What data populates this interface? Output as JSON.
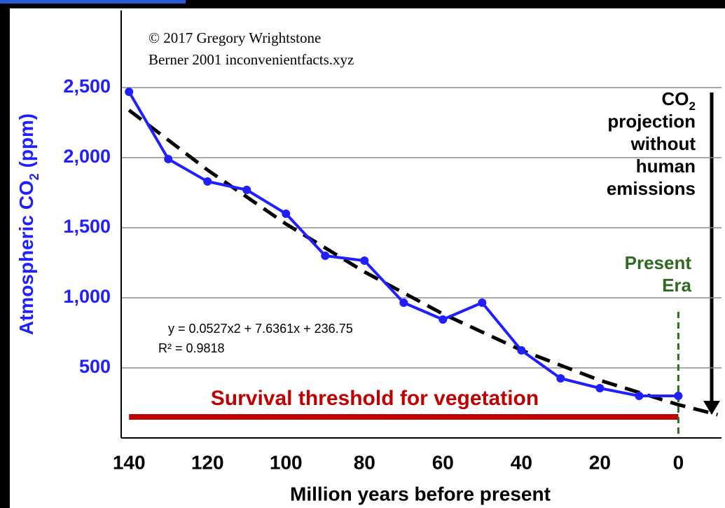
{
  "chart_data": {
    "type": "line",
    "credits": [
      "© 2017 Gregory Wrightstone",
      "Berner 2001 inconvenientfacts.xyz"
    ],
    "ylabel": [
      "Atmospheric CO",
      "2",
      " (ppm)"
    ],
    "xlabel": "Million years before present",
    "xlim": [
      142,
      -11
    ],
    "ylim": [
      0,
      3000
    ],
    "xticks": [
      140,
      120,
      100,
      80,
      60,
      40,
      20,
      0
    ],
    "yticks": [
      500,
      {
        "value": 1000,
        "label": "1,000"
      },
      {
        "value": 1500,
        "label": "1,500"
      },
      {
        "value": 2000,
        "label": "2,000"
      },
      {
        "value": 2500,
        "label": "2,500"
      }
    ],
    "grid": true,
    "series": [
      {
        "color": "#1f1fff",
        "markers": true,
        "x": [
          140,
          130,
          120,
          110,
          100,
          90,
          80,
          70,
          60,
          50,
          40,
          30,
          20,
          10,
          0
        ],
        "values": [
          2470,
          1990,
          1830,
          1770,
          1600,
          1300,
          1265,
          965,
          845,
          965,
          625,
          425,
          355,
          300,
          300
        ]
      },
      {
        "color": "#000000",
        "dashed": true,
        "x": [
          140,
          120,
          100,
          80,
          60,
          40,
          20,
          0,
          -10
        ],
        "values": [
          2339,
          1912,
          1527,
          1185,
          885,
          626,
          411,
          237,
          166
        ]
      }
    ],
    "equation": [
      "y = 0.0527x2 + 7.6361x + 236.75",
      "R² = 0.9818"
    ],
    "threshold": {
      "label": "Survival threshold for vegetation",
      "value": 150,
      "x": [
        140,
        0
      ],
      "color": "#c00000"
    },
    "present": {
      "lines": [
        "Present",
        "Era"
      ],
      "x": 0,
      "color": "#2e6b1f"
    },
    "projection": {
      "first": [
        "CO",
        "2"
      ],
      "lines": [
        "projection",
        "without",
        "human",
        "emissions"
      ]
    }
  }
}
